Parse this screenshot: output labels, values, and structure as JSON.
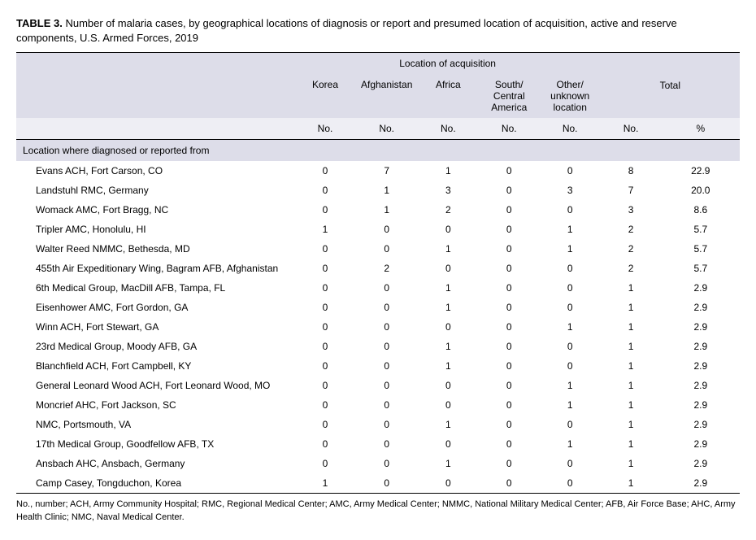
{
  "title_label": "TABLE 3.",
  "title_text": "Number of malaria cases, by geographical locations of diagnosis or report and presumed location of acquisition, active and reserve components, U.S. Armed Forces, 2019",
  "header_group": "Location of acquisition",
  "header_total": "Total",
  "columns_acq": [
    "Korea",
    "Afghanistan",
    "Africa",
    "South/\nCentral\nAmerica",
    "Other/\nunknown\nlocation"
  ],
  "sub_no": "No.",
  "sub_pct": "%",
  "section_label": "Location where diagnosed or reported from",
  "rows": [
    {
      "loc": "Evans ACH, Fort Carson, CO",
      "v": [
        "0",
        "7",
        "1",
        "0",
        "0"
      ],
      "t_no": "8",
      "t_pct": "22.9"
    },
    {
      "loc": "Landstuhl RMC, Germany",
      "v": [
        "0",
        "1",
        "3",
        "0",
        "3"
      ],
      "t_no": "7",
      "t_pct": "20.0"
    },
    {
      "loc": "Womack AMC, Fort Bragg, NC",
      "v": [
        "0",
        "1",
        "2",
        "0",
        "0"
      ],
      "t_no": "3",
      "t_pct": "8.6"
    },
    {
      "loc": "Tripler AMC, Honolulu, HI",
      "v": [
        "1",
        "0",
        "0",
        "0",
        "1"
      ],
      "t_no": "2",
      "t_pct": "5.7"
    },
    {
      "loc": "Walter Reed NMMC, Bethesda, MD",
      "v": [
        "0",
        "0",
        "1",
        "0",
        "1"
      ],
      "t_no": "2",
      "t_pct": "5.7"
    },
    {
      "loc": "455th Air Expeditionary Wing, Bagram AFB, Afghanistan",
      "v": [
        "0",
        "2",
        "0",
        "0",
        "0"
      ],
      "t_no": "2",
      "t_pct": "5.7"
    },
    {
      "loc": "6th Medical Group, MacDill AFB, Tampa, FL",
      "v": [
        "0",
        "0",
        "1",
        "0",
        "0"
      ],
      "t_no": "1",
      "t_pct": "2.9"
    },
    {
      "loc": "Eisenhower AMC, Fort Gordon, GA",
      "v": [
        "0",
        "0",
        "1",
        "0",
        "0"
      ],
      "t_no": "1",
      "t_pct": "2.9"
    },
    {
      "loc": "Winn ACH, Fort Stewart, GA",
      "v": [
        "0",
        "0",
        "0",
        "0",
        "1"
      ],
      "t_no": "1",
      "t_pct": "2.9"
    },
    {
      "loc": "23rd Medical Group, Moody AFB, GA",
      "v": [
        "0",
        "0",
        "1",
        "0",
        "0"
      ],
      "t_no": "1",
      "t_pct": "2.9"
    },
    {
      "loc": "Blanchfield ACH, Fort Campbell, KY",
      "v": [
        "0",
        "0",
        "1",
        "0",
        "0"
      ],
      "t_no": "1",
      "t_pct": "2.9"
    },
    {
      "loc": "General Leonard Wood ACH, Fort Leonard Wood, MO",
      "v": [
        "0",
        "0",
        "0",
        "0",
        "1"
      ],
      "t_no": "1",
      "t_pct": "2.9"
    },
    {
      "loc": "Moncrief AHC, Fort Jackson, SC",
      "v": [
        "0",
        "0",
        "0",
        "0",
        "1"
      ],
      "t_no": "1",
      "t_pct": "2.9"
    },
    {
      "loc": "NMC, Portsmouth, VA",
      "v": [
        "0",
        "0",
        "1",
        "0",
        "0"
      ],
      "t_no": "1",
      "t_pct": "2.9"
    },
    {
      "loc": "17th Medical Group, Goodfellow AFB, TX",
      "v": [
        "0",
        "0",
        "0",
        "0",
        "1"
      ],
      "t_no": "1",
      "t_pct": "2.9"
    },
    {
      "loc": "Ansbach AHC, Ansbach, Germany",
      "v": [
        "0",
        "0",
        "1",
        "0",
        "0"
      ],
      "t_no": "1",
      "t_pct": "2.9"
    },
    {
      "loc": "Camp Casey, Tongduchon, Korea",
      "v": [
        "1",
        "0",
        "0",
        "0",
        "0"
      ],
      "t_no": "1",
      "t_pct": "2.9"
    }
  ],
  "footnote": "No., number; ACH, Army Community Hospital; RMC, Regional Medical Center; AMC, Army Medical Center; NMMC, National Military Medical Center; AFB, Air Force Base; AHC, Army Health Clinic; NMC, Naval Medical Center.",
  "colors": {
    "header_bg": "#dddde9",
    "subheader_bg": "#eeeef4",
    "border": "#000000",
    "text": "#000000",
    "background": "#ffffff"
  },
  "fonts": {
    "title_size": 13,
    "body_size": 12,
    "footnote_size": 11,
    "family": "Arial"
  }
}
